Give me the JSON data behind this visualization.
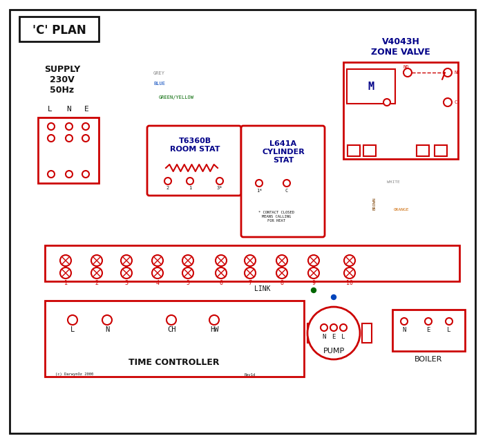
{
  "bg": "#ffffff",
  "red": "#cc0000",
  "blue": "#0044bb",
  "green": "#006600",
  "brown": "#7B3F00",
  "grey": "#888888",
  "orange": "#cc6600",
  "black": "#111111",
  "dblue": "#000088",
  "title": "'C' PLAN",
  "supply_text": "SUPPLY\n230V\n50Hz",
  "room_stat": "T6360B\nROOM STAT",
  "cyl_stat": "L641A\nCYLINDER\nSTAT",
  "zone_valve": "V4043H\nZONE VALVE",
  "time_ctrl": "TIME CONTROLLER",
  "pump_lbl": "PUMP",
  "boiler_lbl": "BOILER",
  "link_lbl": "LINK",
  "footnote": "* CONTACT CLOSED\nMEANS CALLING\nFOR HEAT",
  "copyright": "(c) DarwynOz 2000",
  "rev": "Rev1d",
  "grey_lbl": "GREY",
  "blue_lbl": "BLUE",
  "gy_lbl": "GREEN/YELLOW",
  "brown_lbl": "BROWN",
  "white_lbl": "WHITE",
  "orange_lbl": "ORANGE"
}
